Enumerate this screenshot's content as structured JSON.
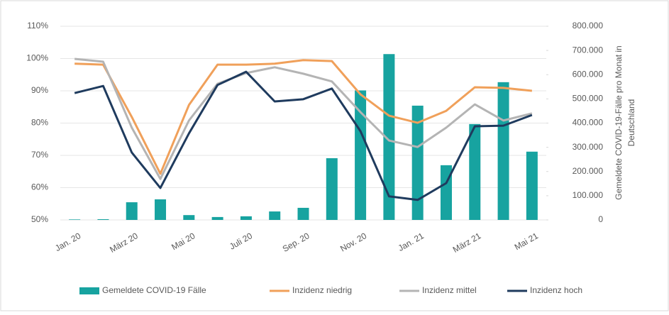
{
  "chart_data": {
    "type": "bar-line",
    "categories": [
      "Jan. 20",
      null,
      "März 20",
      null,
      "Mai 20",
      null,
      "Juli 20",
      null,
      "Sep. 20",
      null,
      "Nov. 20",
      null,
      "Jan. 21",
      null,
      "März 21",
      null,
      "Mai 21"
    ],
    "series": [
      {
        "name": "Gemeldete COVID-19 Fälle",
        "type": "bar",
        "axis": "y2",
        "color": "#17a3a0",
        "values": [
          2000,
          3000,
          73000,
          85000,
          20000,
          12000,
          15000,
          35000,
          50000,
          255000,
          535000,
          685000,
          472000,
          226000,
          396000,
          569000,
          282000
        ]
      },
      {
        "name": "Inzidenz niedrig",
        "type": "line",
        "color": "#f0a05a",
        "values": [
          98.4,
          98.1,
          81.9,
          64.3,
          85.6,
          98.1,
          98.1,
          98.4,
          99.5,
          99.2,
          88.9,
          82.3,
          80.1,
          83.8,
          91.1,
          90.9,
          90.0
        ]
      },
      {
        "name": "Inzidenz mittel",
        "type": "line",
        "color": "#b4b4b4",
        "values": [
          99.9,
          99.0,
          78.6,
          62.7,
          80.8,
          92.2,
          95.5,
          97.3,
          95.3,
          92.9,
          83.4,
          74.6,
          72.6,
          78.6,
          85.8,
          80.8,
          83.0
        ]
      },
      {
        "name": "Inzidenz hoch",
        "type": "line",
        "color": "#1f3b5e",
        "values": [
          89.3,
          91.5,
          70.9,
          59.9,
          76.8,
          91.8,
          95.9,
          86.7,
          87.4,
          90.7,
          77.5,
          57.3,
          56.2,
          61.4,
          79.0,
          79.2,
          82.5
        ]
      }
    ],
    "ylim": [
      50,
      110
    ],
    "yticks": [
      {
        "value": 50,
        "label": "50%"
      },
      {
        "value": 60,
        "label": "60%"
      },
      {
        "value": 70,
        "label": "70%"
      },
      {
        "value": 80,
        "label": "80%"
      },
      {
        "value": 90,
        "label": "90%"
      },
      {
        "value": 100,
        "label": "100%"
      },
      {
        "value": 110,
        "label": "110%"
      }
    ],
    "y2lim": [
      0,
      800000
    ],
    "y2ticks": [
      0,
      {
        "value": 100000,
        "label": "100.000"
      },
      {
        "value": 200000,
        "label": "200.000"
      },
      {
        "value": 300000,
        "label": "300.000"
      },
      {
        "value": 400000,
        "label": "400.000"
      },
      {
        "value": 500000,
        "label": "500.000"
      },
      {
        "value": 600000,
        "label": "600.000"
      },
      {
        "value": 700000,
        "label": "700.000"
      },
      {
        "value": 800000,
        "label": "800.000"
      }
    ],
    "y2label": [
      "Gemeldete COVID-19-Fälle pro Monat in",
      "Deutschland"
    ],
    "legend": "bottom"
  }
}
